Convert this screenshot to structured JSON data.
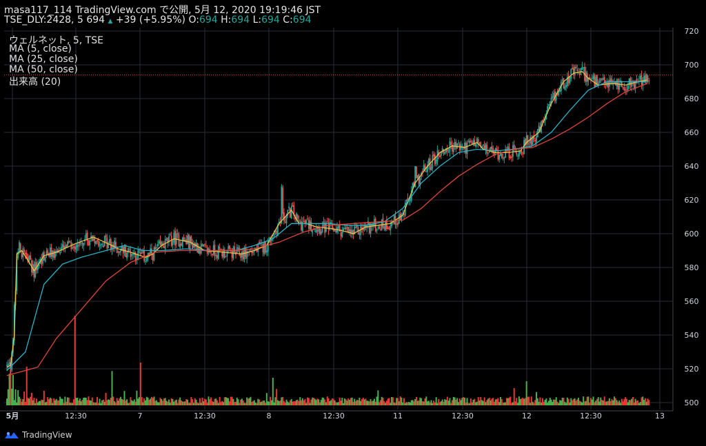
{
  "header": {
    "publisher": "masa117_114 TradingView.com で公開, 5月 12, 2020 19:19:46 JST",
    "symbol": "TSE_DLY:2428, 5",
    "last": "694",
    "change": "+39 (+5.95%)",
    "o_label": "O:",
    "o_value": "694",
    "h_label": "H:",
    "h_value": "694",
    "l_label": "L:",
    "l_value": "694",
    "c_label": "C:",
    "c_value": "694"
  },
  "legend": {
    "title": "ウェルネット, 5, TSE",
    "ma5": "MA (5, close)",
    "ma25": "MA (25, close)",
    "ma50": "MA (50, close)",
    "volume": "出来高 (20)"
  },
  "price_tag": "694",
  "colors": {
    "background": "#000000",
    "up": "#26a69a",
    "down": "#ef5350",
    "vol_up": "#4caf50",
    "vol_down": "#e53935",
    "ma5": "#e8c34a",
    "ma25": "#26b5c8",
    "ma50": "#e0463a",
    "grid": "#2a2e39"
  },
  "footer": {
    "brand": "TradingView"
  },
  "chart_data": {
    "type": "candlestick",
    "y_axis": {
      "min": 500,
      "max": 720,
      "ticks": [
        "720",
        "700",
        "680",
        "660",
        "640",
        "620",
        "600",
        "580",
        "560",
        "540",
        "520",
        "500"
      ]
    },
    "x_ticks": [
      "5月",
      "12:30",
      "7",
      "12:30",
      "8",
      "12:30",
      "11",
      "12:30",
      "12",
      "12:30",
      "13"
    ],
    "last_price": 694,
    "series": [
      {
        "name": "MA (5, close)",
        "color": "#e8c34a",
        "points": [
          [
            0,
            521
          ],
          [
            3,
            522
          ],
          [
            6,
            540
          ],
          [
            8,
            588
          ],
          [
            12,
            590
          ],
          [
            18,
            583
          ],
          [
            22,
            578
          ],
          [
            30,
            587
          ],
          [
            40,
            589
          ],
          [
            55,
            594
          ],
          [
            70,
            598
          ],
          [
            85,
            593
          ],
          [
            90,
            591
          ],
          [
            100,
            589
          ],
          [
            112,
            586
          ],
          [
            118,
            588
          ],
          [
            125,
            593
          ],
          [
            135,
            597
          ],
          [
            148,
            595
          ],
          [
            160,
            590
          ],
          [
            175,
            589
          ],
          [
            190,
            588
          ],
          [
            200,
            590
          ],
          [
            210,
            593
          ],
          [
            220,
            606
          ],
          [
            230,
            614
          ],
          [
            236,
            606
          ],
          [
            242,
            606
          ],
          [
            250,
            604
          ],
          [
            262,
            603
          ],
          [
            270,
            602
          ],
          [
            280,
            600
          ],
          [
            290,
            604
          ],
          [
            300,
            605
          ],
          [
            310,
            606
          ],
          [
            320,
            611
          ],
          [
            330,
            630
          ],
          [
            340,
            640
          ],
          [
            350,
            648
          ],
          [
            360,
            652
          ],
          [
            370,
            651
          ],
          [
            380,
            654
          ],
          [
            385,
            650
          ],
          [
            395,
            648
          ],
          [
            405,
            648
          ],
          [
            415,
            649
          ],
          [
            420,
            654
          ],
          [
            430,
            660
          ],
          [
            440,
            677
          ],
          [
            450,
            690
          ],
          [
            458,
            695
          ],
          [
            465,
            696
          ],
          [
            470,
            692
          ],
          [
            478,
            688
          ],
          [
            490,
            689
          ],
          [
            500,
            688
          ],
          [
            510,
            690
          ],
          [
            518,
            691
          ]
        ]
      },
      {
        "name": "MA (25, close)",
        "color": "#26b5c8",
        "points": [
          [
            0,
            519
          ],
          [
            15,
            530
          ],
          [
            30,
            570
          ],
          [
            45,
            582
          ],
          [
            60,
            586
          ],
          [
            80,
            590
          ],
          [
            95,
            593
          ],
          [
            110,
            590
          ],
          [
            125,
            590
          ],
          [
            145,
            591
          ],
          [
            165,
            590
          ],
          [
            185,
            590
          ],
          [
            200,
            593
          ],
          [
            215,
            597
          ],
          [
            230,
            606
          ],
          [
            245,
            606
          ],
          [
            260,
            606
          ],
          [
            275,
            605
          ],
          [
            290,
            605
          ],
          [
            305,
            607
          ],
          [
            320,
            615
          ],
          [
            335,
            630
          ],
          [
            350,
            640
          ],
          [
            365,
            648
          ],
          [
            380,
            650
          ],
          [
            395,
            649
          ],
          [
            410,
            650
          ],
          [
            425,
            652
          ],
          [
            440,
            660
          ],
          [
            455,
            673
          ],
          [
            470,
            685
          ],
          [
            485,
            690
          ],
          [
            500,
            690
          ],
          [
            518,
            690
          ]
        ]
      },
      {
        "name": "MA (50, close)",
        "color": "#e0463a",
        "points": [
          [
            0,
            516
          ],
          [
            15,
            519
          ],
          [
            25,
            521
          ],
          [
            40,
            538
          ],
          [
            60,
            555
          ],
          [
            80,
            572
          ],
          [
            100,
            583
          ],
          [
            120,
            589
          ],
          [
            140,
            590
          ],
          [
            160,
            590
          ],
          [
            180,
            590
          ],
          [
            200,
            591
          ],
          [
            220,
            595
          ],
          [
            240,
            601
          ],
          [
            260,
            605
          ],
          [
            280,
            606
          ],
          [
            300,
            607
          ],
          [
            320,
            608
          ],
          [
            335,
            615
          ],
          [
            350,
            625
          ],
          [
            365,
            634
          ],
          [
            380,
            641
          ],
          [
            395,
            647
          ],
          [
            410,
            650
          ],
          [
            425,
            651
          ],
          [
            440,
            656
          ],
          [
            455,
            662
          ],
          [
            470,
            669
          ],
          [
            485,
            677
          ],
          [
            500,
            684
          ],
          [
            518,
            689
          ]
        ]
      }
    ],
    "volume_scale_note": "relative"
  }
}
